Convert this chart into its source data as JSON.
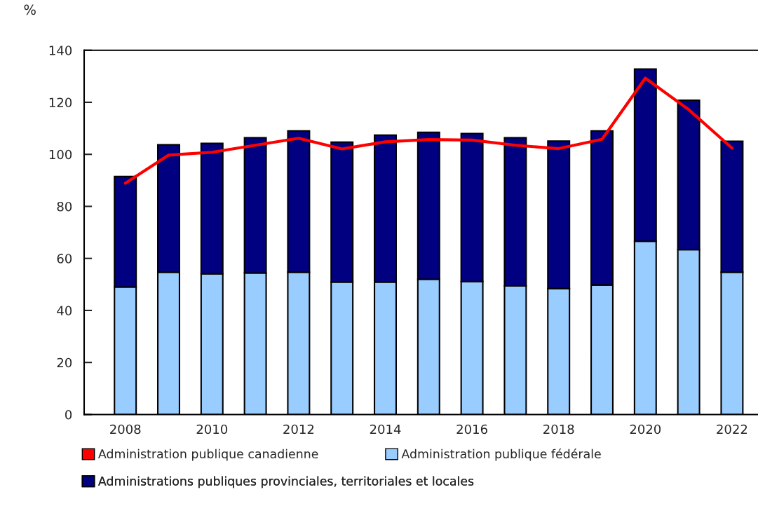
{
  "chart_data": {
    "type": "bar",
    "stacked": true,
    "ylabel": "%",
    "categories": [
      "2008",
      null,
      "2010",
      null,
      "2012",
      null,
      "2014",
      null,
      "2016",
      null,
      "2018",
      null,
      "2020",
      null,
      "2022"
    ],
    "ylim": [
      0,
      140
    ],
    "yticks": [
      0,
      20,
      40,
      60,
      80,
      100,
      120,
      140
    ],
    "grid": false,
    "legend": "bottom",
    "series": [
      {
        "name": "Administration publique canadienne",
        "type": "line",
        "color": "#ff0000",
        "values": [
          88.9,
          99.7,
          100.8,
          103.5,
          106.2,
          102.1,
          104.8,
          105.7,
          105.5,
          103.5,
          102.2,
          105.8,
          129.3,
          117.2,
          102.4
        ]
      },
      {
        "name": "Administration publique fédérale",
        "color": "#99ccff",
        "values": [
          49.0,
          54.7,
          54.1,
          54.4,
          54.7,
          50.9,
          50.9,
          52.0,
          51.1,
          49.4,
          48.4,
          49.8,
          66.6,
          63.4,
          54.7
        ]
      },
      {
        "name": "Administrations publiques provinciales, territoriales et locales",
        "color": "#000080",
        "values": [
          42.5,
          49.0,
          50.1,
          52.0,
          54.3,
          53.8,
          56.5,
          56.5,
          56.9,
          57.0,
          56.7,
          59.2,
          66.2,
          57.4,
          50.3
        ]
      }
    ]
  }
}
